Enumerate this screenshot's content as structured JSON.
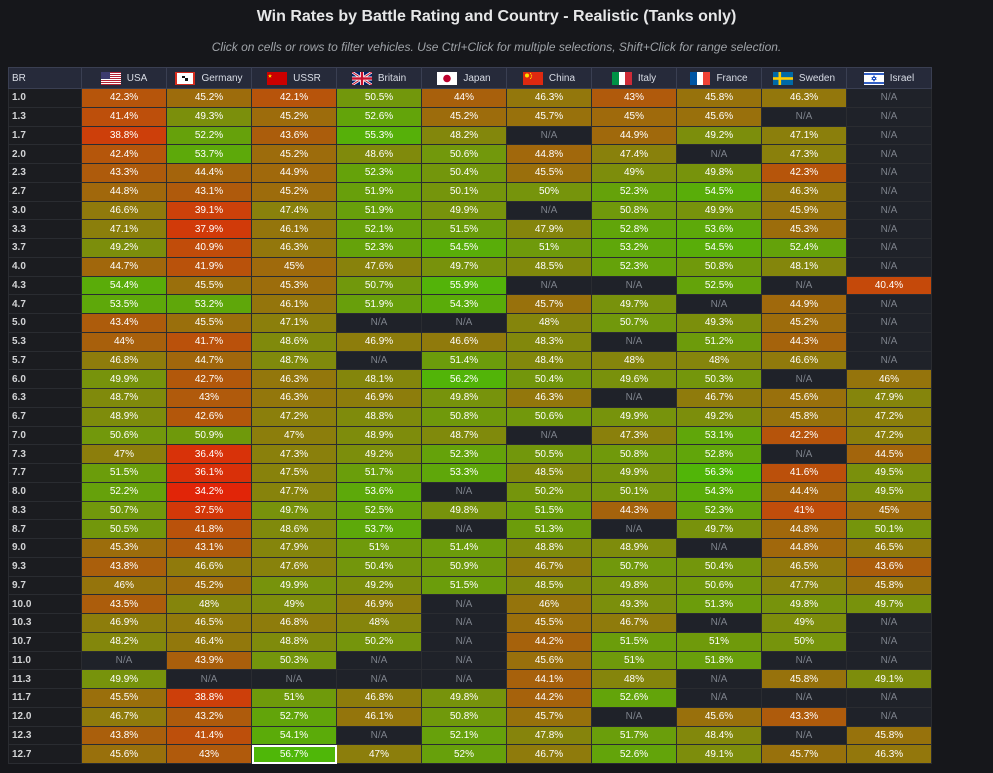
{
  "title": "Win Rates by Battle Rating and Country - Realistic (Tanks only)",
  "subtitle": "Click on cells or rows to filter vehicles. Use Ctrl+Click for multiple selections, Shift+Click for range selection.",
  "br_header": "BR",
  "na_label": "N/A",
  "countries": [
    {
      "name": "USA",
      "flag": "usa-flag-icon"
    },
    {
      "name": "Germany",
      "flag": "germany-flag-icon"
    },
    {
      "name": "USSR",
      "flag": "ussr-flag-icon"
    },
    {
      "name": "Britain",
      "flag": "britain-flag-icon"
    },
    {
      "name": "Japan",
      "flag": "japan-flag-icon"
    },
    {
      "name": "China",
      "flag": "china-flag-icon"
    },
    {
      "name": "Italy",
      "flag": "italy-flag-icon"
    },
    {
      "name": "France",
      "flag": "france-flag-icon"
    },
    {
      "name": "Sweden",
      "flag": "sweden-flag-icon"
    },
    {
      "name": "Israel",
      "flag": "israel-flag-icon"
    }
  ],
  "rows": [
    {
      "br": "1.0",
      "values": [
        "42.3%",
        "45.2%",
        "42.1%",
        "50.5%",
        "44%",
        "46.3%",
        "43%",
        "45.8%",
        "46.3%",
        null
      ]
    },
    {
      "br": "1.3",
      "values": [
        "41.4%",
        "49.3%",
        "45.2%",
        "52.6%",
        "45.2%",
        "45.7%",
        "45%",
        "45.6%",
        null,
        null
      ]
    },
    {
      "br": "1.7",
      "values": [
        "38.8%",
        "52.2%",
        "43.6%",
        "55.3%",
        "48.2%",
        null,
        "44.9%",
        "49.2%",
        "47.1%",
        null
      ]
    },
    {
      "br": "2.0",
      "values": [
        "42.4%",
        "53.7%",
        "45.2%",
        "48.6%",
        "50.6%",
        "44.8%",
        "47.4%",
        null,
        "47.3%",
        null
      ]
    },
    {
      "br": "2.3",
      "values": [
        "43.3%",
        "44.4%",
        "44.9%",
        "52.3%",
        "50.4%",
        "45.5%",
        "49%",
        "49.8%",
        "42.3%",
        null
      ]
    },
    {
      "br": "2.7",
      "values": [
        "44.8%",
        "43.1%",
        "45.2%",
        "51.9%",
        "50.1%",
        "50%",
        "52.3%",
        "54.5%",
        "46.3%",
        null
      ]
    },
    {
      "br": "3.0",
      "values": [
        "46.6%",
        "39.1%",
        "47.4%",
        "51.9%",
        "49.9%",
        null,
        "50.8%",
        "49.9%",
        "45.9%",
        null
      ]
    },
    {
      "br": "3.3",
      "values": [
        "47.1%",
        "37.9%",
        "46.1%",
        "52.1%",
        "51.5%",
        "47.9%",
        "52.8%",
        "53.6%",
        "45.3%",
        null
      ]
    },
    {
      "br": "3.7",
      "values": [
        "49.2%",
        "40.9%",
        "46.3%",
        "52.3%",
        "54.5%",
        "51%",
        "53.2%",
        "54.5%",
        "52.4%",
        null
      ]
    },
    {
      "br": "4.0",
      "values": [
        "44.7%",
        "41.9%",
        "45%",
        "47.6%",
        "49.7%",
        "48.5%",
        "52.3%",
        "50.8%",
        "48.1%",
        null
      ]
    },
    {
      "br": "4.3",
      "values": [
        "54.4%",
        "45.5%",
        "45.3%",
        "50.7%",
        "55.9%",
        null,
        null,
        "52.5%",
        null,
        "40.4%"
      ]
    },
    {
      "br": "4.7",
      "values": [
        "53.5%",
        "53.2%",
        "46.1%",
        "51.9%",
        "54.3%",
        "45.7%",
        "49.7%",
        null,
        "44.9%",
        null
      ]
    },
    {
      "br": "5.0",
      "values": [
        "43.4%",
        "45.5%",
        "47.1%",
        null,
        null,
        "48%",
        "50.7%",
        "49.3%",
        "45.2%",
        null
      ]
    },
    {
      "br": "5.3",
      "values": [
        "44%",
        "41.7%",
        "48.6%",
        "46.9%",
        "46.6%",
        "48.3%",
        null,
        "51.2%",
        "44.3%",
        null
      ]
    },
    {
      "br": "5.7",
      "values": [
        "46.8%",
        "44.7%",
        "48.7%",
        null,
        "51.4%",
        "48.4%",
        "48%",
        "48%",
        "46.6%",
        null
      ]
    },
    {
      "br": "6.0",
      "values": [
        "49.9%",
        "42.7%",
        "46.3%",
        "48.1%",
        "56.2%",
        "50.4%",
        "49.6%",
        "50.3%",
        null,
        "46%"
      ]
    },
    {
      "br": "6.3",
      "values": [
        "48.7%",
        "43%",
        "46.3%",
        "46.9%",
        "49.8%",
        "46.3%",
        null,
        "46.7%",
        "45.6%",
        "47.9%"
      ]
    },
    {
      "br": "6.7",
      "values": [
        "48.9%",
        "42.6%",
        "47.2%",
        "48.8%",
        "50.8%",
        "50.6%",
        "49.9%",
        "49.2%",
        "45.8%",
        "47.2%"
      ]
    },
    {
      "br": "7.0",
      "values": [
        "50.6%",
        "50.9%",
        "47%",
        "48.9%",
        "48.7%",
        null,
        "47.3%",
        "53.1%",
        "42.2%",
        "47.2%"
      ]
    },
    {
      "br": "7.3",
      "values": [
        "47%",
        "36.4%",
        "47.3%",
        "49.2%",
        "52.3%",
        "50.5%",
        "50.8%",
        "52.8%",
        null,
        "44.5%"
      ]
    },
    {
      "br": "7.7",
      "values": [
        "51.5%",
        "36.1%",
        "47.5%",
        "51.7%",
        "53.3%",
        "48.5%",
        "49.9%",
        "56.3%",
        "41.6%",
        "49.5%"
      ]
    },
    {
      "br": "8.0",
      "values": [
        "52.2%",
        "34.2%",
        "47.7%",
        "53.6%",
        null,
        "50.2%",
        "50.1%",
        "54.3%",
        "44.4%",
        "49.5%"
      ]
    },
    {
      "br": "8.3",
      "values": [
        "50.7%",
        "37.5%",
        "49.7%",
        "52.5%",
        "49.8%",
        "51.5%",
        "44.3%",
        "52.3%",
        "41%",
        "45%"
      ]
    },
    {
      "br": "8.7",
      "values": [
        "50.5%",
        "41.8%",
        "48.6%",
        "53.7%",
        null,
        "51.3%",
        null,
        "49.7%",
        "44.8%",
        "50.1%"
      ]
    },
    {
      "br": "9.0",
      "values": [
        "45.3%",
        "43.1%",
        "47.9%",
        "51%",
        "51.4%",
        "48.8%",
        "48.9%",
        null,
        "44.8%",
        "46.5%"
      ]
    },
    {
      "br": "9.3",
      "values": [
        "43.8%",
        "46.6%",
        "47.6%",
        "50.4%",
        "50.9%",
        "46.7%",
        "50.7%",
        "50.4%",
        "46.5%",
        "43.6%"
      ]
    },
    {
      "br": "9.7",
      "values": [
        "46%",
        "45.2%",
        "49.9%",
        "49.2%",
        "51.5%",
        "48.5%",
        "49.8%",
        "50.6%",
        "47.7%",
        "45.8%"
      ]
    },
    {
      "br": "10.0",
      "values": [
        "43.5%",
        "48%",
        "49%",
        "46.9%",
        null,
        "46%",
        "49.3%",
        "51.3%",
        "49.8%",
        "49.7%"
      ]
    },
    {
      "br": "10.3",
      "values": [
        "46.9%",
        "46.5%",
        "46.8%",
        "48%",
        null,
        "45.5%",
        "46.7%",
        null,
        "49%",
        null
      ]
    },
    {
      "br": "10.7",
      "values": [
        "48.2%",
        "46.4%",
        "48.8%",
        "50.2%",
        null,
        "44.2%",
        "51.5%",
        "51%",
        "50%",
        null
      ]
    },
    {
      "br": "11.0",
      "values": [
        null,
        "43.9%",
        "50.3%",
        null,
        null,
        "45.6%",
        "51%",
        "51.8%",
        null,
        null
      ]
    },
    {
      "br": "11.3",
      "values": [
        "49.9%",
        null,
        null,
        null,
        null,
        "44.1%",
        "48%",
        null,
        "45.8%",
        "49.1%"
      ]
    },
    {
      "br": "11.7",
      "values": [
        "45.5%",
        "38.8%",
        "51%",
        "46.8%",
        "49.8%",
        "44.2%",
        "52.6%",
        null,
        null,
        null
      ]
    },
    {
      "br": "12.0",
      "values": [
        "46.7%",
        "43.2%",
        "52.7%",
        "46.1%",
        "50.8%",
        "45.7%",
        null,
        "45.6%",
        "43.3%",
        null
      ]
    },
    {
      "br": "12.3",
      "values": [
        "43.8%",
        "41.4%",
        "54.1%",
        null,
        "52.1%",
        "47.8%",
        "51.7%",
        "48.4%",
        null,
        "45.8%"
      ]
    },
    {
      "br": "12.7",
      "values": [
        "45.6%",
        "43%",
        "56.7%",
        "47%",
        "52%",
        "46.7%",
        "52.6%",
        "49.1%",
        "45.7%",
        "46.3%"
      ]
    }
  ],
  "selected_cell": {
    "br": "12.7",
    "country": "USSR"
  },
  "colors": {
    "low": "#e0280e",
    "mid": "#8a8a0c",
    "high": "#4fb50a",
    "na": "#1f2229",
    "background": "#16171b",
    "header": "#262a3a"
  }
}
